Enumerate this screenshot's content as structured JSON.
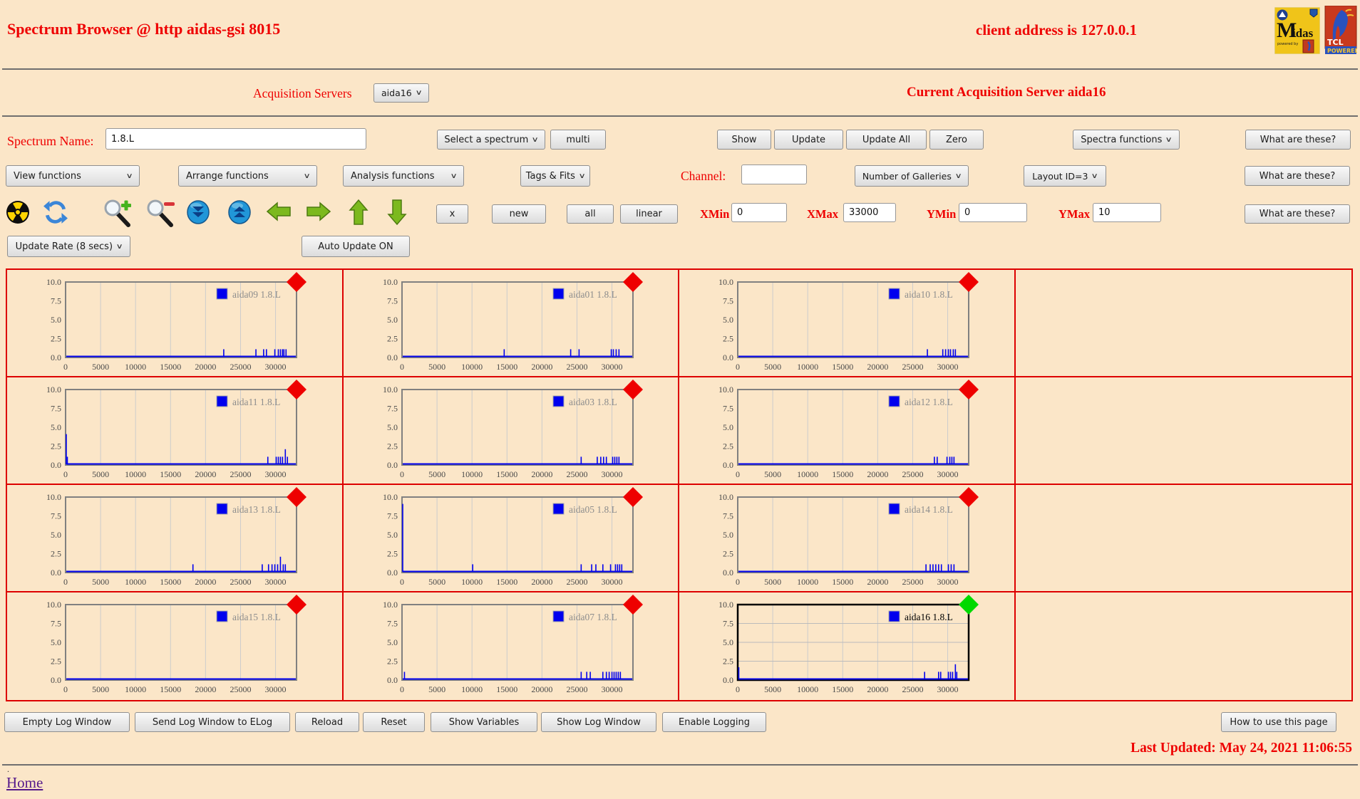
{
  "header": {
    "title": "Spectrum Browser @ http aidas-gsi 8015",
    "client_address": "client address is 127.0.0.1",
    "logos": {
      "midas": {
        "big_letter": "M",
        "rest": "idas",
        "sub": "powered by"
      },
      "tcl": {
        "line1": "TCL",
        "line2": "POWERED"
      }
    }
  },
  "acquisition_row": {
    "label": "Acquisition Servers",
    "server_selected": "aida16",
    "current": "Current Acquisition Server aida16"
  },
  "spectrum_row": {
    "name_label": "Spectrum Name:",
    "name_value": "1.8.L",
    "select_spectrum_label": "Select a spectrum",
    "multi_label": "multi",
    "show_label": "Show",
    "update_label": "Update",
    "update_all_label": "Update All",
    "zero_label": "Zero",
    "spectra_functions_label": "Spectra functions",
    "what_are_these_label": "What are these?"
  },
  "functions_row": {
    "view_label": "View functions",
    "arrange_label": "Arrange functions",
    "analysis_label": "Analysis functions",
    "tags_label": "Tags & Fits",
    "channel_label": "Channel:",
    "channel_value": "",
    "galleries_label": "Number of Galleries",
    "layout_label": "Layout ID=3",
    "what_are_these_label": "What are these?"
  },
  "toolbar": {
    "icons": [
      "radiation",
      "refresh",
      "zoom-in",
      "zoom-out",
      "scroll-down",
      "scroll-up",
      "pan-left",
      "pan-right",
      "pan-up",
      "pan-down"
    ],
    "x_label": "x",
    "new_label": "new",
    "all_label": "all",
    "linear_label": "linear",
    "xmin_label": "XMin",
    "xmin_value": "0",
    "xmax_label": "XMax",
    "xmax_value": "33000",
    "ymin_label": "YMin",
    "ymin_value": "0",
    "ymax_label": "YMax",
    "ymax_value": "10",
    "what_are_these_label": "What are these?"
  },
  "update_row": {
    "rate_label": "Update Rate (8 secs)",
    "auto_label": "Auto Update ON"
  },
  "chart_data": {
    "type": "bar",
    "note": "12 impulse-style spectrum galleries in a 4x4 grid (4th column empty); spikes are [x,count]",
    "xlim": [
      0,
      33000
    ],
    "ylim": [
      0,
      10
    ],
    "x_ticks": [
      0,
      5000,
      10000,
      15000,
      20000,
      25000,
      30000
    ],
    "y_ticks": [
      0,
      2.5,
      5,
      7.5,
      10
    ],
    "grid": {
      "rows": 4,
      "cols": 4
    },
    "colors": {
      "series": "#0000EE",
      "marker_normal": "#EE0000",
      "marker_selected": "#00D900",
      "border_normal": "#808080",
      "border_selected": "#000000",
      "cell_border": "#DD0000"
    },
    "charts": [
      {
        "row": 0,
        "col": 0,
        "legend": "aida09 1.8.L",
        "selected": false,
        "spikes": [
          [
            22600,
            1
          ],
          [
            27200,
            1
          ],
          [
            28300,
            1
          ],
          [
            28700,
            1
          ],
          [
            29900,
            1
          ],
          [
            30400,
            1
          ],
          [
            30700,
            1
          ],
          [
            31000,
            1
          ],
          [
            31200,
            1
          ],
          [
            31500,
            1
          ]
        ]
      },
      {
        "row": 0,
        "col": 1,
        "legend": "aida01 1.8.L",
        "selected": false,
        "spikes": [
          [
            14600,
            1
          ],
          [
            24100,
            1
          ],
          [
            25300,
            1
          ],
          [
            29900,
            1
          ],
          [
            30200,
            1
          ],
          [
            30600,
            1
          ],
          [
            31000,
            1
          ]
        ]
      },
      {
        "row": 0,
        "col": 2,
        "legend": "aida10 1.8.L",
        "selected": false,
        "spikes": [
          [
            27100,
            1
          ],
          [
            29300,
            1
          ],
          [
            29700,
            1
          ],
          [
            30100,
            1
          ],
          [
            30400,
            1
          ],
          [
            30800,
            1
          ],
          [
            31100,
            1
          ]
        ]
      },
      {
        "row": 1,
        "col": 0,
        "legend": "aida11 1.8.L",
        "selected": false,
        "spikes": [
          [
            100,
            4
          ],
          [
            250,
            1
          ],
          [
            28900,
            1
          ],
          [
            30100,
            1
          ],
          [
            30400,
            1
          ],
          [
            30700,
            1
          ],
          [
            31000,
            1
          ],
          [
            31400,
            2
          ],
          [
            31700,
            1
          ]
        ]
      },
      {
        "row": 1,
        "col": 1,
        "legend": "aida03 1.8.L",
        "selected": false,
        "spikes": [
          [
            25600,
            1
          ],
          [
            27900,
            1
          ],
          [
            28400,
            1
          ],
          [
            28800,
            1
          ],
          [
            29200,
            1
          ],
          [
            30100,
            1
          ],
          [
            30400,
            1
          ],
          [
            30700,
            1
          ],
          [
            31000,
            1
          ]
        ]
      },
      {
        "row": 1,
        "col": 2,
        "legend": "aida12 1.8.L",
        "selected": false,
        "spikes": [
          [
            28100,
            1
          ],
          [
            28500,
            1
          ],
          [
            29900,
            1
          ],
          [
            30300,
            1
          ],
          [
            30600,
            1
          ],
          [
            30900,
            1
          ]
        ]
      },
      {
        "row": 2,
        "col": 0,
        "legend": "aida13 1.8.L",
        "selected": false,
        "spikes": [
          [
            18200,
            1
          ],
          [
            28100,
            1
          ],
          [
            29000,
            1
          ],
          [
            29500,
            1
          ],
          [
            29900,
            1
          ],
          [
            30300,
            1
          ],
          [
            30700,
            2
          ],
          [
            31100,
            1
          ],
          [
            31400,
            1
          ]
        ]
      },
      {
        "row": 2,
        "col": 1,
        "legend": "aida05 1.8.L",
        "selected": false,
        "spikes": [
          [
            100,
            9
          ],
          [
            10100,
            1
          ],
          [
            25600,
            1
          ],
          [
            27100,
            1
          ],
          [
            27700,
            1
          ],
          [
            28700,
            1
          ],
          [
            29800,
            1
          ],
          [
            30500,
            1
          ],
          [
            30800,
            1
          ],
          [
            31100,
            1
          ],
          [
            31400,
            1
          ]
        ]
      },
      {
        "row": 2,
        "col": 2,
        "legend": "aida14 1.8.L",
        "selected": false,
        "spikes": [
          [
            26900,
            1
          ],
          [
            27500,
            1
          ],
          [
            27900,
            1
          ],
          [
            28300,
            1
          ],
          [
            28700,
            1
          ],
          [
            29100,
            1
          ],
          [
            30100,
            1
          ],
          [
            30500,
            1
          ],
          [
            30900,
            1
          ]
        ]
      },
      {
        "row": 3,
        "col": 0,
        "legend": "aida15 1.8.L",
        "selected": false,
        "spikes": []
      },
      {
        "row": 3,
        "col": 1,
        "legend": "aida07 1.8.L",
        "selected": false,
        "spikes": [
          [
            350,
            1
          ],
          [
            25600,
            1
          ],
          [
            26400,
            1
          ],
          [
            26900,
            1
          ],
          [
            28700,
            1
          ],
          [
            29200,
            1
          ],
          [
            29600,
            1
          ],
          [
            30000,
            1
          ],
          [
            30300,
            1
          ],
          [
            30600,
            1
          ],
          [
            30900,
            1
          ],
          [
            31200,
            1
          ]
        ]
      },
      {
        "row": 3,
        "col": 2,
        "legend": "aida16 1.8.L",
        "selected": true,
        "spikes": [
          [
            150,
            1.6
          ],
          [
            26700,
            1
          ],
          [
            28700,
            1
          ],
          [
            29000,
            1
          ],
          [
            30100,
            1
          ],
          [
            30400,
            1
          ],
          [
            30700,
            1
          ],
          [
            31100,
            2
          ],
          [
            31300,
            1
          ]
        ]
      }
    ]
  },
  "footer": {
    "buttons": [
      "Empty Log Window",
      "Send Log Window to ELog",
      "Reload",
      "Reset",
      "Show Variables",
      "Show Log Window",
      "Enable Logging"
    ],
    "help_label": "How to use this page",
    "last_updated": "Last Updated: May 24, 2021 11:06:55",
    "dot": ".",
    "home_label": "Home"
  }
}
